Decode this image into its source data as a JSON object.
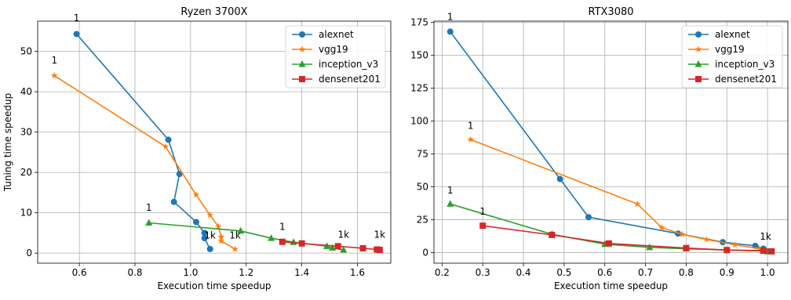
{
  "chart_data": [
    {
      "type": "line",
      "title": "Ryzen 3700X",
      "xlabel": "Execution time speedup",
      "ylabel": "Tuning time speedup",
      "xlim": [
        0.45,
        1.72
      ],
      "ylim": [
        -2.5,
        57.5
      ],
      "xticks": [
        0.6,
        0.8,
        1.0,
        1.2,
        1.4,
        1.6
      ],
      "xtick_labels": [
        "0.6",
        "0.8",
        "1.0",
        "1.2",
        "1.4",
        "1.6"
      ],
      "yticks": [
        0,
        10,
        20,
        30,
        40,
        50
      ],
      "ytick_labels": [
        "0",
        "10",
        "20",
        "30",
        "40",
        "50"
      ],
      "grid": true,
      "legend_position": "top-right",
      "series": [
        {
          "name": "alexnet",
          "color": "#1f77b4",
          "marker": "circle",
          "x": [
            0.59,
            0.92,
            0.96,
            0.94,
            1.02,
            1.05,
            1.05,
            1.07
          ],
          "y": [
            54.3,
            28.1,
            19.6,
            12.7,
            7.7,
            5.0,
            3.7,
            1.0
          ]
        },
        {
          "name": "vgg19",
          "color": "#ff7f0e",
          "marker": "star",
          "x": [
            0.51,
            0.91,
            1.02,
            1.07,
            1.1,
            1.11,
            1.11,
            1.16
          ],
          "y": [
            44.0,
            26.4,
            14.4,
            9.4,
            6.6,
            4.0,
            3.0,
            1.0
          ]
        },
        {
          "name": "inception_v3",
          "color": "#2ca02c",
          "marker": "triangle",
          "x": [
            0.85,
            1.18,
            1.29,
            1.37,
            1.49,
            1.51,
            1.55
          ],
          "y": [
            7.5,
            5.5,
            3.7,
            2.7,
            1.7,
            1.3,
            0.8
          ]
        },
        {
          "name": "densenet201",
          "color": "#d62728",
          "marker": "square",
          "x": [
            1.33,
            1.4,
            1.53,
            1.62,
            1.67,
            1.68
          ],
          "y": [
            2.8,
            2.4,
            1.7,
            1.2,
            0.9,
            0.8
          ]
        }
      ],
      "annotations": [
        {
          "text": "1",
          "x": 0.59,
          "y": 57.5
        },
        {
          "text": "1",
          "x": 0.51,
          "y": 47.0
        },
        {
          "text": "1",
          "x": 0.85,
          "y": 10.5
        },
        {
          "text": "1",
          "x": 1.33,
          "y": 5.8
        },
        {
          "text": "1k",
          "x": 1.07,
          "y": 3.6
        },
        {
          "text": "1k",
          "x": 1.16,
          "y": 3.6
        },
        {
          "text": "1k",
          "x": 1.55,
          "y": 3.8
        },
        {
          "text": "1k",
          "x": 1.68,
          "y": 3.8
        }
      ]
    },
    {
      "type": "line",
      "title": "RTX3080",
      "xlabel": "Execution time speedup",
      "ylabel": "",
      "xlim": [
        0.18,
        1.05
      ],
      "ylim": [
        -8,
        176
      ],
      "xticks": [
        0.2,
        0.3,
        0.4,
        0.5,
        0.6,
        0.7,
        0.8,
        0.9,
        1.0
      ],
      "xtick_labels": [
        "0.2",
        "0.3",
        "0.4",
        "0.5",
        "0.6",
        "0.7",
        "0.8",
        "0.9",
        "1.0"
      ],
      "yticks": [
        0,
        25,
        50,
        75,
        100,
        125,
        150,
        175
      ],
      "ytick_labels": [
        "0",
        "25",
        "50",
        "75",
        "100",
        "125",
        "150",
        "175"
      ],
      "grid": true,
      "legend_position": "top-right",
      "series": [
        {
          "name": "alexnet",
          "color": "#1f77b4",
          "marker": "circle",
          "x": [
            0.22,
            0.49,
            0.56,
            0.78,
            0.89,
            0.97,
            0.99,
            1.0
          ],
          "y": [
            168.0,
            56.0,
            27.0,
            14.5,
            8.0,
            5.2,
            3.0,
            1.0
          ]
        },
        {
          "name": "vgg19",
          "color": "#ff7f0e",
          "marker": "star",
          "x": [
            0.27,
            0.68,
            0.74,
            0.79,
            0.85,
            0.92,
            0.98,
            1.0
          ],
          "y": [
            86.0,
            37.0,
            19.0,
            14.0,
            10.0,
            6.0,
            3.0,
            1.0
          ]
        },
        {
          "name": "inception_v3",
          "color": "#2ca02c",
          "marker": "triangle",
          "x": [
            0.22,
            0.47,
            0.6,
            0.71,
            0.8,
            0.9,
            0.99,
            1.0
          ],
          "y": [
            37.0,
            14.0,
            6.5,
            4.0,
            3.0,
            2.0,
            1.2,
            0.8
          ]
        },
        {
          "name": "densenet201",
          "color": "#d62728",
          "marker": "square",
          "x": [
            0.3,
            0.47,
            0.61,
            0.8,
            0.9,
            0.99,
            1.01
          ],
          "y": [
            20.5,
            13.5,
            7.0,
            3.5,
            2.0,
            1.5,
            1.0
          ]
        }
      ],
      "annotations": [
        {
          "text": "1",
          "x": 0.22,
          "y": 177
        },
        {
          "text": "1",
          "x": 0.27,
          "y": 94
        },
        {
          "text": "1",
          "x": 0.22,
          "y": 45
        },
        {
          "text": "1",
          "x": 0.3,
          "y": 29
        },
        {
          "text": "1k",
          "x": 0.995,
          "y": 10
        }
      ]
    }
  ]
}
